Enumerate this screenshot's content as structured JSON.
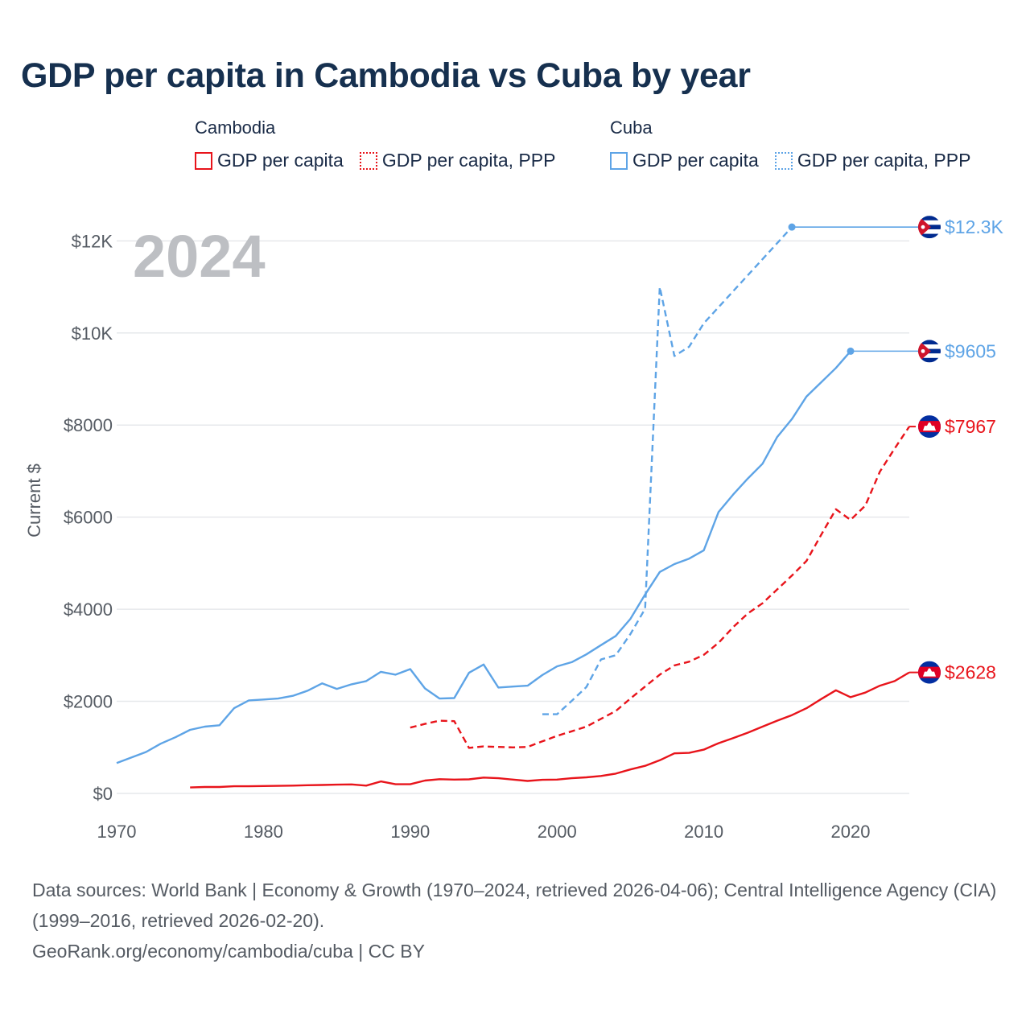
{
  "title": "GDP per capita in Cambodia vs Cuba by year",
  "legend": {
    "groups": [
      {
        "name": "Cambodia",
        "items": [
          {
            "label": "GDP per capita",
            "color": "#e8141b",
            "style": "solid"
          },
          {
            "label": "GDP per capita, PPP",
            "color": "#e8141b",
            "style": "dotted"
          }
        ]
      },
      {
        "name": "Cuba",
        "items": [
          {
            "label": "GDP per capita",
            "color": "#5ea4e6",
            "style": "solid"
          },
          {
            "label": "GDP per capita, PPP",
            "color": "#5ea4e6",
            "style": "dotted"
          }
        ]
      }
    ]
  },
  "chart_data": {
    "type": "line",
    "year_label": "2024",
    "ylabel": "Current $",
    "xlim": [
      1970,
      2024
    ],
    "ylim": [
      0,
      12600
    ],
    "x_ticks": [
      {
        "value": 1970,
        "label": "1970"
      },
      {
        "value": 1980,
        "label": "1980"
      },
      {
        "value": 1990,
        "label": "1990"
      },
      {
        "value": 2000,
        "label": "2000"
      },
      {
        "value": 2010,
        "label": "2010"
      },
      {
        "value": 2020,
        "label": "2020"
      }
    ],
    "y_ticks": [
      {
        "value": 0,
        "label": "$0"
      },
      {
        "value": 2000,
        "label": "$2000"
      },
      {
        "value": 4000,
        "label": "$4000"
      },
      {
        "value": 6000,
        "label": "$6000"
      },
      {
        "value": 8000,
        "label": "$8000"
      },
      {
        "value": 10000,
        "label": "$10K"
      },
      {
        "value": 12000,
        "label": "$12K"
      }
    ],
    "series": [
      {
        "name": "Cuba GDP per capita",
        "country": "Cuba",
        "color": "#5ea4e6",
        "dash": "solid",
        "end_label": "$9605",
        "end_value": 9605,
        "points": [
          [
            1970,
            660
          ],
          [
            1971,
            780
          ],
          [
            1972,
            900
          ],
          [
            1973,
            1080
          ],
          [
            1974,
            1220
          ],
          [
            1975,
            1380
          ],
          [
            1976,
            1450
          ],
          [
            1977,
            1480
          ],
          [
            1978,
            1850
          ],
          [
            1979,
            2020
          ],
          [
            1980,
            2040
          ],
          [
            1981,
            2060
          ],
          [
            1982,
            2120
          ],
          [
            1983,
            2230
          ],
          [
            1984,
            2390
          ],
          [
            1985,
            2270
          ],
          [
            1986,
            2370
          ],
          [
            1987,
            2440
          ],
          [
            1988,
            2640
          ],
          [
            1989,
            2580
          ],
          [
            1990,
            2700
          ],
          [
            1991,
            2280
          ],
          [
            1992,
            2060
          ],
          [
            1993,
            2070
          ],
          [
            1994,
            2620
          ],
          [
            1995,
            2800
          ],
          [
            1996,
            2300
          ],
          [
            1997,
            2320
          ],
          [
            1998,
            2340
          ],
          [
            1999,
            2570
          ],
          [
            2000,
            2760
          ],
          [
            2001,
            2850
          ],
          [
            2002,
            3020
          ],
          [
            2003,
            3220
          ],
          [
            2004,
            3420
          ],
          [
            2005,
            3790
          ],
          [
            2006,
            4320
          ],
          [
            2007,
            4810
          ],
          [
            2008,
            4980
          ],
          [
            2009,
            5100
          ],
          [
            2010,
            5280
          ],
          [
            2011,
            6110
          ],
          [
            2012,
            6490
          ],
          [
            2013,
            6840
          ],
          [
            2014,
            7160
          ],
          [
            2015,
            7740
          ],
          [
            2016,
            8130
          ],
          [
            2017,
            8620
          ],
          [
            2018,
            8930
          ],
          [
            2019,
            9240
          ],
          [
            2020,
            9605
          ]
        ]
      },
      {
        "name": "Cuba GDP per capita, PPP",
        "country": "Cuba",
        "color": "#5ea4e6",
        "dash": "dashed",
        "end_label": "$12.3K",
        "end_value": 12300,
        "points": [
          [
            1999,
            1720
          ],
          [
            2000,
            1720
          ],
          [
            2001,
            2010
          ],
          [
            2002,
            2310
          ],
          [
            2003,
            2910
          ],
          [
            2004,
            3000
          ],
          [
            2005,
            3460
          ],
          [
            2006,
            4010
          ],
          [
            2007,
            11000
          ],
          [
            2008,
            9500
          ],
          [
            2009,
            9700
          ],
          [
            2010,
            10210
          ],
          [
            2016,
            12300
          ]
        ]
      },
      {
        "name": "Cambodia GDP per capita",
        "country": "Cambodia",
        "color": "#e8141b",
        "dash": "solid",
        "end_label": "$2628",
        "end_value": 2628,
        "points": [
          [
            1975,
            130
          ],
          [
            1976,
            140
          ],
          [
            1977,
            140
          ],
          [
            1978,
            155
          ],
          [
            1979,
            155
          ],
          [
            1980,
            160
          ],
          [
            1981,
            165
          ],
          [
            1982,
            170
          ],
          [
            1983,
            178
          ],
          [
            1984,
            183
          ],
          [
            1985,
            190
          ],
          [
            1986,
            195
          ],
          [
            1987,
            170
          ],
          [
            1988,
            260
          ],
          [
            1989,
            200
          ],
          [
            1990,
            200
          ],
          [
            1991,
            280
          ],
          [
            1992,
            310
          ],
          [
            1993,
            300
          ],
          [
            1994,
            305
          ],
          [
            1995,
            345
          ],
          [
            1996,
            330
          ],
          [
            1997,
            300
          ],
          [
            1998,
            270
          ],
          [
            1999,
            295
          ],
          [
            2000,
            300
          ],
          [
            2001,
            330
          ],
          [
            2002,
            350
          ],
          [
            2003,
            380
          ],
          [
            2004,
            430
          ],
          [
            2005,
            520
          ],
          [
            2006,
            600
          ],
          [
            2007,
            720
          ],
          [
            2008,
            870
          ],
          [
            2009,
            880
          ],
          [
            2010,
            950
          ],
          [
            2011,
            1090
          ],
          [
            2012,
            1200
          ],
          [
            2013,
            1320
          ],
          [
            2014,
            1450
          ],
          [
            2015,
            1580
          ],
          [
            2016,
            1700
          ],
          [
            2017,
            1850
          ],
          [
            2018,
            2050
          ],
          [
            2019,
            2240
          ],
          [
            2020,
            2090
          ],
          [
            2021,
            2190
          ],
          [
            2022,
            2340
          ],
          [
            2023,
            2440
          ],
          [
            2024,
            2628
          ]
        ]
      },
      {
        "name": "Cambodia GDP per capita, PPP",
        "country": "Cambodia",
        "color": "#e8141b",
        "dash": "dashed",
        "end_label": "$7967",
        "end_value": 7967,
        "points": [
          [
            1990,
            1430
          ],
          [
            1991,
            1510
          ],
          [
            1992,
            1580
          ],
          [
            1993,
            1570
          ],
          [
            1994,
            990
          ],
          [
            1995,
            1020
          ],
          [
            1996,
            1010
          ],
          [
            1997,
            1000
          ],
          [
            1998,
            1010
          ],
          [
            1999,
            1130
          ],
          [
            2000,
            1250
          ],
          [
            2001,
            1350
          ],
          [
            2002,
            1450
          ],
          [
            2003,
            1620
          ],
          [
            2004,
            1790
          ],
          [
            2005,
            2060
          ],
          [
            2006,
            2320
          ],
          [
            2007,
            2580
          ],
          [
            2008,
            2780
          ],
          [
            2009,
            2860
          ],
          [
            2010,
            3010
          ],
          [
            2011,
            3270
          ],
          [
            2012,
            3610
          ],
          [
            2013,
            3910
          ],
          [
            2014,
            4130
          ],
          [
            2015,
            4430
          ],
          [
            2016,
            4730
          ],
          [
            2017,
            5050
          ],
          [
            2018,
            5620
          ],
          [
            2019,
            6170
          ],
          [
            2020,
            5940
          ],
          [
            2021,
            6250
          ],
          [
            2022,
            6990
          ],
          [
            2023,
            7490
          ],
          [
            2024,
            7967
          ]
        ]
      }
    ]
  },
  "footer": {
    "sources": "Data sources: World Bank | Economy & Growth (1970–2024, retrieved 2026-04-06); Central Intelligence Agency (CIA) (1999–2016, retrieved 2026-02-20).",
    "credit": "GeoRank.org/economy/cambodia/cuba | CC BY"
  }
}
